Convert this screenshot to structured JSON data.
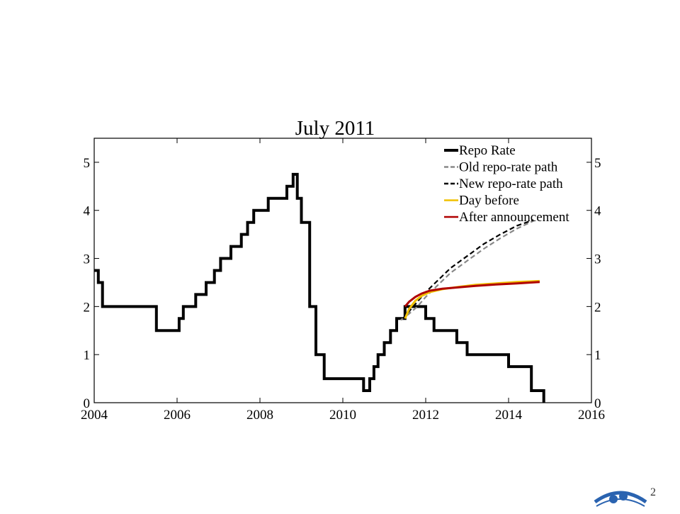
{
  "slide": {
    "page_number": "2"
  },
  "chart_data": {
    "type": "line",
    "title": "July 2011",
    "xlabel": "",
    "ylabel": "",
    "xlim": [
      2004,
      2016
    ],
    "ylim": [
      0,
      5.5
    ],
    "x_ticks": [
      "2004",
      "2006",
      "2008",
      "2010",
      "2012",
      "2014",
      "2016"
    ],
    "y_ticks_left": [
      "0",
      "1",
      "2",
      "3",
      "4",
      "5"
    ],
    "y_ticks_right": [
      "0",
      "1",
      "2",
      "3",
      "4",
      "5"
    ],
    "grid": false,
    "legend_position": "top-right",
    "series": [
      {
        "name": "Repo Rate",
        "color": "#000000",
        "style": "solid-thick",
        "step": true,
        "x": [
          2004.0,
          2004.1,
          2004.2,
          2005.5,
          2006.05,
          2006.15,
          2006.45,
          2006.7,
          2006.9,
          2007.05,
          2007.3,
          2007.55,
          2007.7,
          2007.85,
          2008.2,
          2008.65,
          2008.8,
          2008.9,
          2009.0,
          2009.2,
          2009.35,
          2009.55,
          2010.5,
          2010.65,
          2010.75,
          2010.85,
          2011.0,
          2011.15,
          2011.3,
          2011.5,
          2011.85,
          2012.0,
          2012.2,
          2012.75,
          2013.0,
          2014.0,
          2014.55,
          2014.85
        ],
        "values": [
          2.75,
          2.5,
          2.0,
          1.5,
          1.75,
          2.0,
          2.25,
          2.5,
          2.75,
          3.0,
          3.25,
          3.5,
          3.75,
          4.0,
          4.25,
          4.5,
          4.75,
          4.25,
          3.75,
          2.0,
          1.0,
          0.5,
          0.25,
          0.5,
          0.75,
          1.0,
          1.25,
          1.5,
          1.75,
          2.0,
          2.0,
          1.75,
          1.5,
          1.25,
          1.0,
          0.75,
          0.25,
          0.0
        ]
      },
      {
        "name": "Old repo-rate path",
        "color": "#888888",
        "style": "dashed",
        "x": [
          2011.4,
          2011.6,
          2011.8,
          2012.0,
          2012.3,
          2012.6,
          2013.0,
          2013.4,
          2013.8,
          2014.2,
          2014.6
        ],
        "values": [
          1.72,
          1.85,
          2.0,
          2.2,
          2.45,
          2.7,
          2.95,
          3.2,
          3.42,
          3.62,
          3.78
        ]
      },
      {
        "name": "New repo-rate path",
        "color": "#000000",
        "style": "dashed",
        "x": [
          2011.45,
          2011.6,
          2011.8,
          2012.0,
          2012.3,
          2012.6,
          2013.0,
          2013.4,
          2013.8,
          2014.2,
          2014.6
        ],
        "values": [
          1.75,
          1.9,
          2.1,
          2.3,
          2.55,
          2.8,
          3.05,
          3.3,
          3.5,
          3.68,
          3.8
        ]
      },
      {
        "name": "Day before",
        "color": "#f0c000",
        "style": "solid",
        "x": [
          2011.5,
          2011.6,
          2011.75,
          2011.9,
          2012.1,
          2012.4,
          2012.8,
          2013.2,
          2013.7,
          2014.2,
          2014.75
        ],
        "values": [
          1.75,
          1.95,
          2.12,
          2.22,
          2.3,
          2.36,
          2.41,
          2.45,
          2.48,
          2.51,
          2.53
        ]
      },
      {
        "name": "After announcement",
        "color": "#b00000",
        "style": "solid",
        "x": [
          2011.5,
          2011.6,
          2011.75,
          2011.9,
          2012.1,
          2012.4,
          2012.8,
          2013.2,
          2013.7,
          2014.2,
          2014.75
        ],
        "values": [
          2.0,
          2.1,
          2.2,
          2.27,
          2.33,
          2.37,
          2.4,
          2.43,
          2.46,
          2.48,
          2.51
        ]
      }
    ]
  }
}
